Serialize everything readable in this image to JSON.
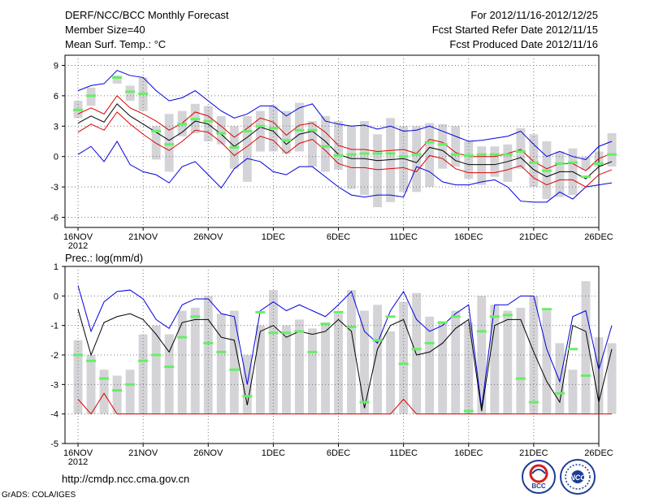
{
  "header": {
    "title": "DERF/NCC/BCC Monthly Forecast",
    "member_size": "Member Size=40",
    "variable": "Mean Surf. Temp.: °C",
    "period": "For 2012/11/16-2012/12/25",
    "refer_date": "Fcst Started Refer Date 2012/11/15",
    "produced_date": "Fcst Produced Date 2012/11/16"
  },
  "footer": {
    "url": "http://cmdp.ncc.cma.gov.cn",
    "grads": "GrADS: COLA/IGES",
    "logo_left": "BCC",
    "logo_right": "NCC"
  },
  "colors": {
    "ensemble_max_min": "#0000dd",
    "ensemble_mean": "#000000",
    "spread": "#dd0000",
    "observed_marker": "#66ee66",
    "bars": "#d4d4d8",
    "grid": "#777777"
  },
  "chart_data": [
    {
      "type": "line",
      "title": "Mean Surf. Temp.: °C",
      "ylim": [
        -7,
        10
      ],
      "yticks": [
        -6,
        -3,
        0,
        3,
        6,
        9
      ],
      "xticks": [
        {
          "day": 1,
          "label": "16NOV",
          "sub": "2012"
        },
        {
          "day": 6,
          "label": "21NOV"
        },
        {
          "day": 11,
          "label": "26NOV"
        },
        {
          "day": 16,
          "label": "1DEC"
        },
        {
          "day": 21,
          "label": "6DEC"
        },
        {
          "day": 26,
          "label": "11DEC"
        },
        {
          "day": 31,
          "label": "16DEC"
        },
        {
          "day": 36,
          "label": "21DEC"
        },
        {
          "day": 41,
          "label": "26DEC"
        }
      ],
      "xlim": [
        0,
        41
      ],
      "bar_base": 0,
      "bars_low": [
        3.8,
        5.0,
        null,
        7.2,
        5.5,
        4.5,
        -0.3,
        -1.5,
        2.0,
        2.3,
        1.5,
        1.2,
        -1.2,
        -2.5,
        0.5,
        0.5,
        0.3,
        0.5,
        -1.0,
        -1.5,
        -1.3,
        -3.2,
        -3.8,
        -5.0,
        -4.5,
        -3.5,
        -3.5,
        -3.0,
        -1.2,
        -1.0,
        -2.2,
        -2.8,
        -2.0,
        -2.5,
        -1.2,
        -3.0,
        -4.2,
        -4.0,
        -3.8,
        -1.3,
        -1.0,
        -1.0
      ],
      "bars_high": [
        5.5,
        6.8,
        null,
        8.0,
        7.0,
        7.8,
        3.0,
        4.2,
        4.5,
        5.2,
        5.0,
        4.0,
        3.0,
        4.0,
        4.5,
        5.0,
        4.5,
        5.3,
        3.5,
        4.0,
        3.5,
        3.0,
        3.5,
        2.2,
        3.8,
        3.0,
        3.0,
        3.3,
        3.2,
        3.0,
        1.5,
        1.0,
        1.0,
        1.2,
        2.8,
        2.2,
        1.5,
        0.5,
        0.8,
        0.0,
        0.5,
        2.3
      ],
      "series": [
        {
          "name": "Ensemble Max",
          "values": [
            6.5,
            7.0,
            7.2,
            8.5,
            8.0,
            7.8,
            6.5,
            5.5,
            5.8,
            6.5,
            5.5,
            4.5,
            3.8,
            4.2,
            5.0,
            5.0,
            4.0,
            4.8,
            5.2,
            3.5,
            3.2,
            3.0,
            3.1,
            2.7,
            3.0,
            2.5,
            2.6,
            3.0,
            2.5,
            2.0,
            1.5,
            1.6,
            1.8,
            2.0,
            2.5,
            1.2,
            0.0,
            0.5,
            0.0,
            -0.3,
            1.0,
            1.5
          ]
        },
        {
          "name": "Ensemble Min",
          "values": [
            0.2,
            1.0,
            -0.5,
            1.5,
            -0.8,
            -1.5,
            -1.8,
            -2.6,
            -1.0,
            -0.5,
            -1.8,
            -3.1,
            -1.2,
            -0.2,
            -0.5,
            -1.5,
            -1.8,
            -1.0,
            -1.0,
            -2.0,
            -3.0,
            -3.8,
            -4.0,
            -3.8,
            -3.8,
            -4.0,
            -1.0,
            -1.5,
            -2.5,
            -2.8,
            -2.8,
            -2.5,
            -2.3,
            -3.0,
            -4.4,
            -4.5,
            -4.5,
            -3.5,
            -4.2,
            -3.0,
            -2.8,
            -2.6
          ]
        },
        {
          "name": "Ensemble Mean",
          "values": [
            3.3,
            4.0,
            3.4,
            5.2,
            4.0,
            3.2,
            2.4,
            1.6,
            2.4,
            3.5,
            3.2,
            2.2,
            1.0,
            1.9,
            2.9,
            2.5,
            1.2,
            2.2,
            2.5,
            1.5,
            0.2,
            -0.2,
            -0.2,
            -0.4,
            -0.3,
            -0.2,
            -0.6,
            0.9,
            0.6,
            -0.4,
            -0.8,
            -0.8,
            -0.8,
            -0.5,
            -0.1,
            -1.3,
            -2.0,
            -1.5,
            -1.5,
            -2.2,
            -1.0,
            -0.5
          ]
        },
        {
          "name": "Mean + Spread",
          "values": [
            4.2,
            4.8,
            4.2,
            6.0,
            4.8,
            4.2,
            3.5,
            2.6,
            3.3,
            4.4,
            4.0,
            3.0,
            1.9,
            2.8,
            3.8,
            3.4,
            2.1,
            3.1,
            3.3,
            2.4,
            1.1,
            0.7,
            0.7,
            0.5,
            0.6,
            0.7,
            0.3,
            1.7,
            1.4,
            0.4,
            0.0,
            0.0,
            0.0,
            0.3,
            0.7,
            -0.5,
            -1.2,
            -0.7,
            -0.7,
            -1.4,
            -0.2,
            0.3
          ]
        },
        {
          "name": "Mean - Spread",
          "values": [
            2.4,
            3.2,
            2.6,
            4.4,
            3.2,
            2.2,
            1.3,
            0.6,
            1.5,
            2.6,
            2.4,
            1.4,
            0.1,
            1.0,
            2.0,
            1.6,
            0.3,
            1.3,
            1.7,
            0.6,
            -0.7,
            -1.1,
            -1.1,
            -1.3,
            -1.2,
            -1.1,
            -1.5,
            0.1,
            -0.2,
            -1.2,
            -1.6,
            -1.6,
            -1.6,
            -1.3,
            -0.9,
            -2.1,
            -2.8,
            -2.3,
            -2.3,
            -3.0,
            -1.8,
            -1.3
          ]
        },
        {
          "name": "Observed",
          "values": [
            4.6,
            6.0,
            null,
            7.8,
            6.4,
            6.2,
            2.5,
            1.2,
            3.2,
            3.7,
            3.5,
            2.3,
            0.9,
            2.5,
            3.0,
            2.8,
            1.6,
            2.6,
            2.6,
            1.0,
            0.1,
            0.2,
            0.3,
            0.3,
            0.3,
            0.0,
            0.2,
            1.4,
            1.2,
            0.2,
            0.1,
            0.2,
            0.2,
            0.2,
            0.5,
            -0.6,
            -1.4,
            -0.7,
            -0.6,
            -2.0,
            -0.7,
            0.2
          ]
        }
      ]
    },
    {
      "type": "line",
      "title": "Prec.: log(mm/d)",
      "ylim": [
        -5,
        1
      ],
      "yticks": [
        -5,
        -4,
        -3,
        -2,
        -1,
        0,
        1
      ],
      "xticks": [
        {
          "day": 1,
          "label": "16NOV",
          "sub": "2012"
        },
        {
          "day": 6,
          "label": "21NOV"
        },
        {
          "day": 11,
          "label": "26NOV"
        },
        {
          "day": 16,
          "label": "1DEC"
        },
        {
          "day": 21,
          "label": "6DEC"
        },
        {
          "day": 26,
          "label": "11DEC"
        },
        {
          "day": 31,
          "label": "16DEC"
        },
        {
          "day": 36,
          "label": "21DEC"
        },
        {
          "day": 41,
          "label": "26DEC"
        }
      ],
      "xlim": [
        0,
        41
      ],
      "bar_base": -4,
      "bars_high": [
        -1.5,
        -2.0,
        -2.5,
        -2.7,
        -2.5,
        -1.3,
        -1.0,
        -1.3,
        -0.5,
        -0.4,
        0.0,
        -0.6,
        -0.5,
        -2.0,
        -1.0,
        0.2,
        -1.0,
        -0.8,
        -1.1,
        -0.9,
        -0.6,
        0.2,
        -0.5,
        -0.3,
        -1.2,
        -0.2,
        0.1,
        -0.7,
        -0.9,
        -0.5,
        -0.9,
        0.0,
        -0.3,
        -0.5,
        -0.4,
        0.0,
        -0.5,
        -1.6,
        -2.5,
        0.5,
        -1.4,
        -1.6
      ],
      "series": [
        {
          "name": "Ensemble Max",
          "values": [
            0.35,
            -1.2,
            -0.2,
            0.15,
            0.2,
            -0.1,
            -0.8,
            -1.1,
            -0.3,
            -0.1,
            -0.1,
            -0.6,
            -0.7,
            -3.0,
            -0.5,
            -0.2,
            -0.5,
            -0.3,
            -0.5,
            -0.7,
            -0.3,
            0.15,
            -1.2,
            -1.6,
            -0.5,
            0.15,
            -0.8,
            -1.2,
            -1.0,
            -0.6,
            -0.3,
            -3.8,
            -0.3,
            -0.3,
            0.0,
            0.0,
            -1.8,
            -2.9,
            -0.7,
            -0.5,
            -2.5,
            -1.0
          ]
        },
        {
          "name": "Ensemble Mean",
          "values": [
            -0.45,
            -2.0,
            -0.9,
            -0.7,
            -0.6,
            -0.8,
            -1.3,
            -1.9,
            -0.9,
            -0.8,
            -0.8,
            -1.4,
            -1.5,
            -3.7,
            -1.2,
            -1.0,
            -1.4,
            -1.2,
            -1.3,
            -1.2,
            -0.8,
            -1.2,
            -3.8,
            -1.8,
            -1.0,
            -0.8,
            -2.0,
            -1.9,
            -1.6,
            -1.1,
            -0.8,
            -3.9,
            -1.0,
            -0.8,
            -0.8,
            -1.9,
            -2.9,
            -3.6,
            -1.0,
            -1.2,
            -3.6,
            -1.8
          ]
        },
        {
          "name": "Ensemble Min",
          "values": [
            -3.5,
            -4.0,
            -3.3,
            -4.0,
            -4.0,
            -4.0,
            -4.0,
            -4.0,
            -4.0,
            -4.0,
            -4.0,
            -4.0,
            -4.0,
            -4.0,
            -4.0,
            -4.0,
            -4.0,
            -4.0,
            -4.0,
            -4.0,
            -4.0,
            -4.0,
            -4.0,
            -4.0,
            -4.0,
            -3.5,
            -4.0,
            -4.0,
            -4.0,
            -4.0,
            -4.0,
            -4.0,
            -4.0,
            -4.0,
            -4.0,
            -4.0,
            -4.0,
            -4.0,
            -4.0,
            -4.0,
            -4.0,
            -4.0
          ]
        },
        {
          "name": "Observed",
          "values": [
            -2.0,
            -2.2,
            -2.8,
            -3.2,
            -3.0,
            -2.2,
            -2.0,
            -2.4,
            -1.4,
            -0.7,
            -1.6,
            -1.9,
            -2.5,
            -3.4,
            -0.55,
            -1.25,
            -1.25,
            -1.2,
            -1.9,
            -0.95,
            -0.55,
            -1.05,
            -3.6,
            -1.5,
            -0.7,
            -2.3,
            -1.8,
            -1.6,
            -0.9,
            -0.7,
            -3.9,
            -1.2,
            -0.7,
            -0.65,
            -2.8,
            -3.6,
            -0.45,
            -3.3,
            -1.8,
            -2.7,
            null,
            null
          ]
        }
      ]
    }
  ]
}
